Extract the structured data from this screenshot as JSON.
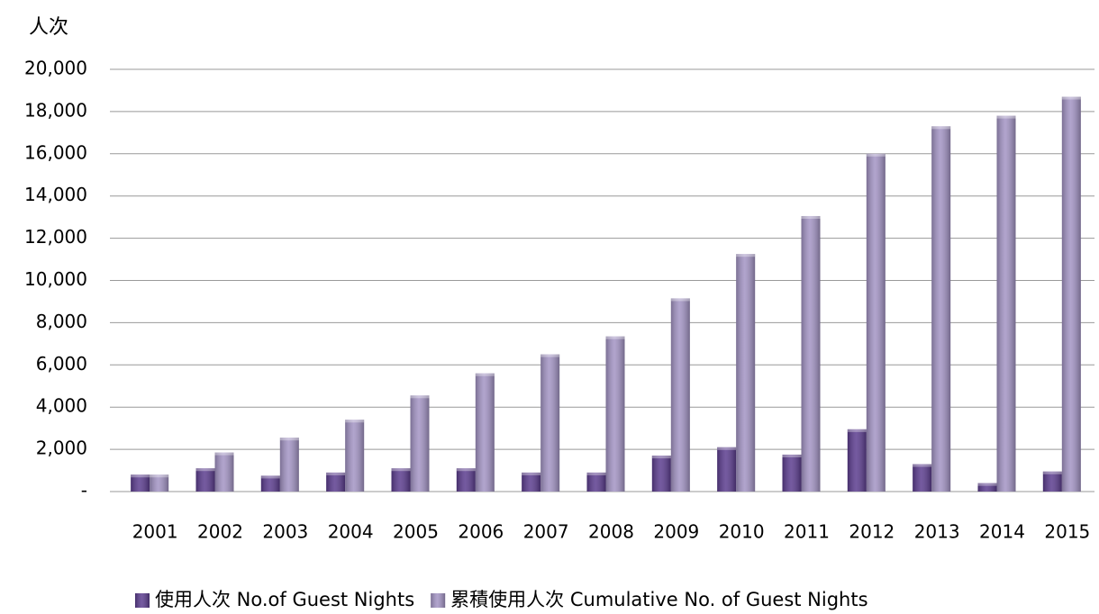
{
  "chart_data": {
    "type": "bar",
    "y_axis_label": "人次",
    "categories": [
      "2001",
      "2002",
      "2003",
      "2004",
      "2005",
      "2006",
      "2007",
      "2008",
      "2009",
      "2010",
      "2011",
      "2012",
      "2013",
      "2014",
      "2015"
    ],
    "series": [
      {
        "name": "使用人次 No.of Guest Nights",
        "color": "#5c3d8f",
        "values": [
          800,
          1100,
          750,
          900,
          1100,
          1100,
          900,
          900,
          1700,
          2100,
          1750,
          2950,
          1300,
          400,
          950
        ]
      },
      {
        "name": "累積使用人次 Cumulative No. of Guest Nights",
        "color": "#a394c4",
        "values": [
          800,
          1850,
          2550,
          3400,
          4550,
          5600,
          6500,
          7350,
          9150,
          11250,
          13050,
          16000,
          17300,
          17800,
          18700
        ]
      }
    ],
    "ylim": [
      0,
      20000
    ],
    "yticks": [
      {
        "value": 0,
        "label": "-"
      },
      {
        "value": 2000,
        "label": "2,000"
      },
      {
        "value": 4000,
        "label": "4,000"
      },
      {
        "value": 6000,
        "label": "6,000"
      },
      {
        "value": 8000,
        "label": "8,000"
      },
      {
        "value": 10000,
        "label": "10,000"
      },
      {
        "value": 12000,
        "label": "12,000"
      },
      {
        "value": 14000,
        "label": "14,000"
      },
      {
        "value": 16000,
        "label": "16,000"
      },
      {
        "value": 18000,
        "label": "18,000"
      },
      {
        "value": 20000,
        "label": "20,000"
      }
    ],
    "grid": true,
    "legend": "bottom"
  }
}
